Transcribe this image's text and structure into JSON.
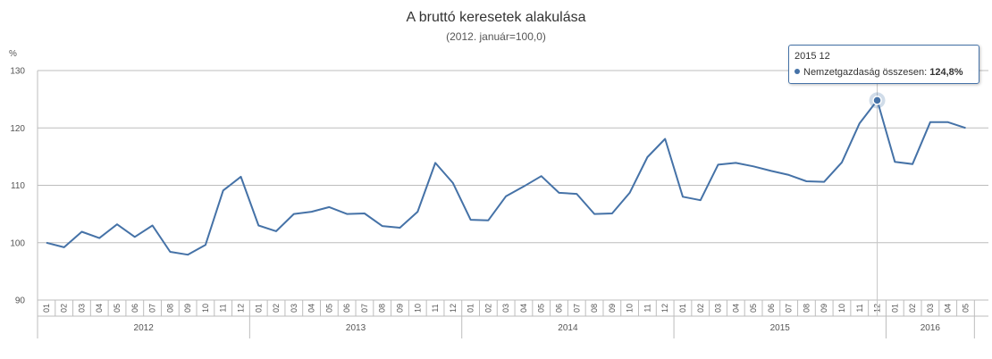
{
  "chart_data": {
    "type": "line",
    "title": "A bruttó keresetek alakulása",
    "subtitle": "(2012. január=100,0)",
    "ylabel": "%",
    "ylim": [
      90,
      130
    ],
    "yticks": [
      90,
      100,
      110,
      120,
      130
    ],
    "grid": true,
    "years": [
      {
        "label": "2012",
        "months": [
          "01",
          "02",
          "03",
          "04",
          "05",
          "06",
          "07",
          "08",
          "09",
          "10",
          "11",
          "12"
        ]
      },
      {
        "label": "2013",
        "months": [
          "01",
          "02",
          "03",
          "04",
          "05",
          "06",
          "07",
          "08",
          "09",
          "10",
          "11",
          "12"
        ]
      },
      {
        "label": "2014",
        "months": [
          "01",
          "02",
          "03",
          "04",
          "05",
          "06",
          "07",
          "08",
          "09",
          "10",
          "11",
          "12"
        ]
      },
      {
        "label": "2015",
        "months": [
          "01",
          "02",
          "03",
          "04",
          "05",
          "06",
          "07",
          "08",
          "09",
          "10",
          "11",
          "12"
        ]
      },
      {
        "label": "2016",
        "months": [
          "01",
          "02",
          "03",
          "04",
          "05"
        ]
      }
    ],
    "series": [
      {
        "name": "Nemzetgazdaság összesen",
        "color": "#4572a7",
        "values": [
          100.0,
          99.2,
          101.9,
          100.8,
          103.2,
          101.0,
          103.0,
          98.4,
          97.9,
          99.6,
          109.1,
          111.5,
          103.0,
          102.0,
          105.0,
          105.4,
          106.2,
          105.0,
          105.1,
          102.9,
          102.6,
          105.4,
          113.9,
          110.4,
          104.0,
          103.9,
          108.1,
          109.8,
          111.6,
          108.7,
          108.5,
          105.0,
          105.1,
          108.7,
          114.9,
          118.1,
          108.0,
          107.4,
          113.6,
          113.9,
          113.3,
          112.5,
          111.8,
          110.7,
          110.6,
          114.0,
          120.8,
          124.8,
          114.1,
          113.7,
          121.0,
          121.0,
          120.0
        ]
      }
    ]
  },
  "tooltip": {
    "date": "2015 12",
    "series": "Nemzetgazdaság összesen:",
    "value": "124,8%",
    "index": 47
  }
}
